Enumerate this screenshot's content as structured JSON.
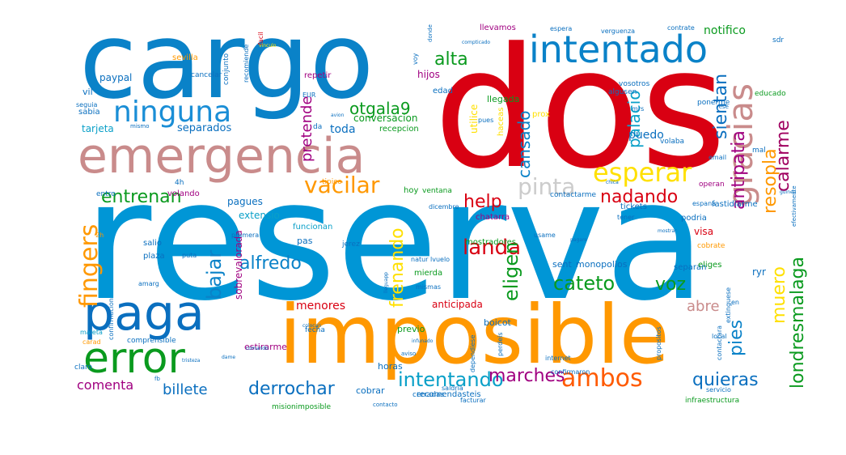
{
  "words": [
    {
      "text": "reserva",
      "color": "#0096d6"
    },
    {
      "text": "dos",
      "color": "#d90012"
    },
    {
      "text": "cargo",
      "color": "#0a82c8"
    },
    {
      "text": "imposible",
      "color": "#ff9800"
    },
    {
      "text": "emergencia",
      "color": "#c98b8b"
    },
    {
      "text": "paga",
      "color": "#0a6fbf"
    },
    {
      "text": "error",
      "color": "#0a9a1e"
    },
    {
      "text": "ninguna",
      "color": "#1a8ed6"
    },
    {
      "text": "intentado",
      "color": "#0a82c8"
    },
    {
      "text": "gracias",
      "color": "#c98b8b"
    },
    {
      "text": "esperar",
      "color": "#ffe000"
    },
    {
      "text": "vacilar",
      "color": "#ff9800"
    },
    {
      "text": "entrenan",
      "color": "#0a9a1e"
    },
    {
      "text": "help",
      "color": "#d90012"
    },
    {
      "text": "pinta",
      "color": "#cccccc"
    },
    {
      "text": "nadando",
      "color": "#d90012"
    },
    {
      "text": "antipatia",
      "color": "#a00080"
    },
    {
      "text": "calarme",
      "color": "#a00060"
    },
    {
      "text": "resopla",
      "color": "#ff9800"
    },
    {
      "text": "sientan",
      "color": "#0a6fbf"
    },
    {
      "text": "palacio",
      "color": "#0aa0c8"
    },
    {
      "text": "cansado",
      "color": "#0a82c8"
    },
    {
      "text": "otgala9",
      "color": "#0a9a1e"
    },
    {
      "text": "alta",
      "color": "#0a9a1e"
    },
    {
      "text": "pretende",
      "color": "#a00080"
    },
    {
      "text": "fingers",
      "color": "#ff9800"
    },
    {
      "text": "bajar",
      "color": "#0a82c8"
    },
    {
      "text": "alfredo",
      "color": "#0a82c8"
    },
    {
      "text": "landa",
      "color": "#d90012"
    },
    {
      "text": "frenando",
      "color": "#ffe000"
    },
    {
      "text": "eligen",
      "color": "#0a9a1e"
    },
    {
      "text": "cateto",
      "color": "#0a9a1e"
    },
    {
      "text": "voz",
      "color": "#0a9a1e"
    },
    {
      "text": "londresmalaga",
      "color": "#0a9a1e"
    },
    {
      "text": "muero",
      "color": "#ffe000"
    },
    {
      "text": "pies",
      "color": "#0a82c8"
    },
    {
      "text": "abre",
      "color": "#c98b8b"
    },
    {
      "text": "ambos",
      "color": "#ff5a00"
    },
    {
      "text": "quieras",
      "color": "#0a6fbf"
    },
    {
      "text": "intentando",
      "color": "#0aa0c8"
    },
    {
      "text": "marches",
      "color": "#a00080"
    },
    {
      "text": "derrochar",
      "color": "#0a6fbf"
    },
    {
      "text": "billete",
      "color": "#0a6fbf"
    },
    {
      "text": "comenta",
      "color": "#a00080"
    },
    {
      "text": "separados",
      "color": "#0a6fbf"
    },
    {
      "text": "toda",
      "color": "#0a6fbf"
    },
    {
      "text": "tarjeta",
      "color": "#0aa0c8"
    },
    {
      "text": "paypal",
      "color": "#0a6fbf"
    },
    {
      "text": "notifico",
      "color": "#0a9a1e"
    },
    {
      "text": "puedo",
      "color": "#0a6fbf"
    },
    {
      "text": "pagues",
      "color": "#0a6fbf"
    },
    {
      "text": "extensio",
      "color": "#0aa0c8"
    },
    {
      "text": "sobrevalorada",
      "color": "#a00080"
    },
    {
      "text": "anticipada",
      "color": "#d90012"
    },
    {
      "text": "visa",
      "color": "#d90012"
    },
    {
      "text": "sent",
      "color": "#0a6fbf"
    },
    {
      "text": "monopolios",
      "color": "#0a6fbf"
    },
    {
      "text": "separan",
      "color": "#0a6fbf"
    },
    {
      "text": "conversacion",
      "color": "#0a9a1e"
    },
    {
      "text": "recepcion",
      "color": "#0a9a1e"
    },
    {
      "text": "hijos",
      "color": "#a00080"
    },
    {
      "text": "edad",
      "color": "#0a6fbf"
    },
    {
      "text": "dicembre",
      "color": "#0a6fbf"
    },
    {
      "text": "menores",
      "color": "#d90012"
    },
    {
      "text": "horas",
      "color": "#0a6fbf"
    },
    {
      "text": "cobrar",
      "color": "#0a6fbf"
    },
    {
      "text": "recomendasteis",
      "color": "#0a6fbf"
    },
    {
      "text": "estirarme",
      "color": "#a00080"
    },
    {
      "text": "fecha",
      "color": "#0a6fbf"
    },
    {
      "text": "boicot",
      "color": "#0a6fbf"
    },
    {
      "text": "previo",
      "color": "#0a9a1e"
    },
    {
      "text": "chatarra",
      "color": "#a00080"
    },
    {
      "text": "funcionan",
      "color": "#0aa0c8"
    },
    {
      "text": "hoy",
      "color": "#0a9a1e"
    },
    {
      "text": "ventana",
      "color": "#0a9a1e"
    },
    {
      "text": "podria",
      "color": "#0a6fbf"
    },
    {
      "text": "fastidiarme",
      "color": "#0a6fbf"
    },
    {
      "text": "tickets",
      "color": "#0a6fbf"
    },
    {
      "text": "tener",
      "color": "#0a6fbf"
    },
    {
      "text": "cobrate",
      "color": "#ff9800"
    },
    {
      "text": "eliges",
      "color": "#0a9a1e"
    },
    {
      "text": "ryr",
      "color": "#0a6fbf"
    },
    {
      "text": "salio",
      "color": "#0a6fbf"
    },
    {
      "text": "plaza",
      "color": "#0a6fbf"
    },
    {
      "text": "entro",
      "color": "#0a6fbf"
    },
    {
      "text": "volando",
      "color": "#a00080"
    },
    {
      "text": "pas",
      "color": "#0a6fbf"
    },
    {
      "text": "jerez",
      "color": "#0a6fbf"
    },
    {
      "text": "mierda",
      "color": "#0a9a1e"
    },
    {
      "text": "mostradores",
      "color": "#0a9a1e"
    },
    {
      "text": "contactarme",
      "color": "#0a6fbf"
    },
    {
      "text": "mal",
      "color": "#0a6fbf"
    },
    {
      "text": "email",
      "color": "#0a6fbf"
    },
    {
      "text": "operan",
      "color": "#a00080"
    },
    {
      "text": "volaba",
      "color": "#0a6fbf"
    },
    {
      "text": "utilice",
      "color": "#ffe000"
    },
    {
      "text": "haceas",
      "color": "#ffe000"
    },
    {
      "text": "llegada",
      "color": "#0a9a1e"
    },
    {
      "text": "prox",
      "color": "#ffe000"
    },
    {
      "text": "algusen",
      "color": "#0a6fbf"
    },
    {
      "text": "vosotros",
      "color": "#0a6fbf"
    },
    {
      "text": "ponerme",
      "color": "#0a6fbf"
    },
    {
      "text": "educado",
      "color": "#0a9a1e"
    },
    {
      "text": "sdr",
      "color": "#0a6fbf"
    },
    {
      "text": "llevamos",
      "color": "#a00080"
    },
    {
      "text": "espera",
      "color": "#0a6fbf"
    },
    {
      "text": "verguenza",
      "color": "#0a6fbf"
    },
    {
      "text": "contrate",
      "color": "#0a6fbf"
    },
    {
      "text": "cancelar",
      "color": "#0a6fbf"
    },
    {
      "text": "sevilla",
      "color": "#ff9800"
    },
    {
      "text": "vil",
      "color": "#0a6fbf"
    },
    {
      "text": "seguia",
      "color": "#0a6fbf"
    },
    {
      "text": "sabia",
      "color": "#0a6fbf"
    },
    {
      "text": "conjunto",
      "color": "#0a6fbf"
    },
    {
      "text": "recomiende",
      "color": "#0a6fbf"
    },
    {
      "text": "repetir",
      "color": "#a00080"
    },
    {
      "text": "EUR",
      "color": "#0a6fbf"
    },
    {
      "text": "da",
      "color": "#0a6fbf"
    },
    {
      "text": "avion",
      "color": "#0a6fbf"
    },
    {
      "text": "tipico",
      "color": "#ff9800"
    },
    {
      "text": "voy",
      "color": "#0a6fbf"
    },
    {
      "text": "pues",
      "color": "#0a6fbf"
    },
    {
      "text": "mismas",
      "color": "#0a6fbf"
    },
    {
      "text": "natur lvuelo",
      "color": "#0a6fbf"
    },
    {
      "text": "usame",
      "color": "#0a6fbf"
    },
    {
      "text": "pramera",
      "color": "#0a6fbf"
    },
    {
      "text": "maleta",
      "color": "#0aa0c8"
    },
    {
      "text": "confirmacion",
      "color": "#0a6fbf"
    },
    {
      "text": "amarg",
      "color": "#0a6fbf"
    },
    {
      "text": "puta",
      "color": "#0a6fbf"
    },
    {
      "text": "comprensible",
      "color": "#0a6fbf"
    },
    {
      "text": "carad",
      "color": "#ff9800"
    },
    {
      "text": "claro",
      "color": "#0a6fbf"
    },
    {
      "text": "internet",
      "color": "#0a6fbf"
    },
    {
      "text": "confirmaron",
      "color": "#0a6fbf"
    },
    {
      "text": "perdeis",
      "color": "#0a6fbf"
    },
    {
      "text": "dependiese",
      "color": "#0a6fbf"
    },
    {
      "text": "cerradas",
      "color": "#0a6fbf"
    },
    {
      "text": "saldria",
      "color": "#0a6fbf"
    },
    {
      "text": "contacto",
      "color": "#0a6fbf"
    },
    {
      "text": "facturar",
      "color": "#0a6fbf"
    },
    {
      "text": "infraestructura",
      "color": "#0a9a1e"
    },
    {
      "text": "propositos",
      "color": "#0a6fbf"
    },
    {
      "text": "contactara",
      "color": "#0a6fbf"
    },
    {
      "text": "local",
      "color": "#0a6fbf"
    },
    {
      "text": "extinguese",
      "color": "#0a6fbf"
    },
    {
      "text": "en",
      "color": "#0a6fbf"
    },
    {
      "text": "misionimposible",
      "color": "#0a9a1e"
    },
    {
      "text": "servicio",
      "color": "#0a6fbf"
    },
    {
      "text": "fb",
      "color": "#0a6fbf"
    },
    {
      "text": "4h",
      "color": "#0a6fbf"
    },
    {
      "text": "2h",
      "color": "#ff9800"
    },
    {
      "text": "comando",
      "color": "#0a6fbf"
    },
    {
      "text": "tristeza",
      "color": "#0a6fbf"
    },
    {
      "text": "colocan",
      "color": "#0a6fbf"
    },
    {
      "text": "dame",
      "color": "#0a6fbf"
    },
    {
      "text": "espana",
      "color": "#0a6fbf"
    },
    {
      "text": "facil",
      "color": "#d90012"
    },
    {
      "text": "donde",
      "color": "#0a6fbf"
    },
    {
      "text": "mrs",
      "color": "#0a6fbf"
    },
    {
      "text": "rese",
      "color": "#0a6fbf"
    },
    {
      "text": "mismo",
      "color": "#0a6fbf"
    },
    {
      "text": "compticado",
      "color": "#0a6fbf"
    },
    {
      "text": "vinculo",
      "color": "#ffe000"
    },
    {
      "text": "guinea",
      "color": "#0a6fbf"
    },
    {
      "text": "chica",
      "color": "#0a6fbf"
    },
    {
      "text": "efectivamente",
      "color": "#0a6fbf"
    },
    {
      "text": "aviso",
      "color": "#0a6fbf"
    },
    {
      "text": "pagare",
      "color": "#0a6fbf"
    },
    {
      "text": "lleguapp",
      "color": "#0a6fbf"
    },
    {
      "text": "infunado",
      "color": "#0a6fbf"
    },
    {
      "text": "mostrar",
      "color": "#0a6fbf"
    }
  ]
}
